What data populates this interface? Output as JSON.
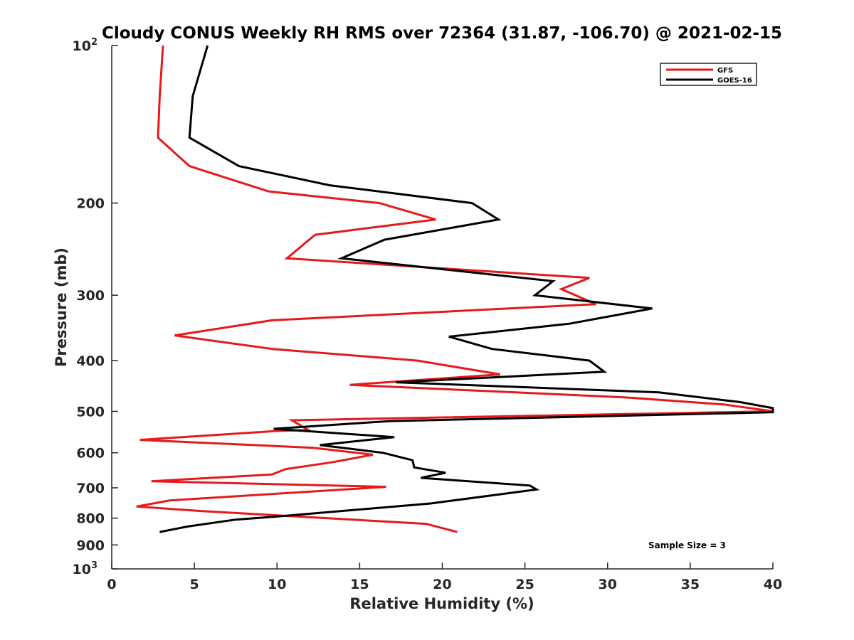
{
  "chart_data": {
    "type": "line",
    "title": "Cloudy CONUS Weekly RH RMS over 72364 (31.87, -106.70) @ 2021-02-15",
    "xlabel": "Relative Humidity (%)",
    "ylabel": "Pressure (mb)",
    "xlim": [
      0,
      40
    ],
    "ylim": [
      100,
      1000
    ],
    "y_scale": "log",
    "y_reversed": true,
    "grid": false,
    "legend_position": "top-right",
    "x_ticks": [
      "0",
      "5",
      "10",
      "15",
      "20",
      "25",
      "30",
      "35",
      "40"
    ],
    "y_ticks": [
      {
        "value": 100,
        "base": "10",
        "exp": "2",
        "text": ""
      },
      {
        "value": 200,
        "text": "200"
      },
      {
        "value": 300,
        "text": "300"
      },
      {
        "value": 400,
        "text": "400"
      },
      {
        "value": 500,
        "text": "500"
      },
      {
        "value": 600,
        "text": "600"
      },
      {
        "value": 700,
        "text": "700"
      },
      {
        "value": 800,
        "text": "800"
      },
      {
        "value": 900,
        "text": "900"
      },
      {
        "value": 1000,
        "base": "10",
        "exp": "3",
        "text": ""
      }
    ],
    "annotation": "Sample Size = 3",
    "series": [
      {
        "name": "GFS",
        "color": "#e41a1c",
        "points": [
          [
            3.1,
            100
          ],
          [
            2.9,
            125
          ],
          [
            2.8,
            150
          ],
          [
            4.7,
            170
          ],
          [
            9.5,
            190
          ],
          [
            16.2,
            200
          ],
          [
            19.6,
            215
          ],
          [
            12.3,
            230
          ],
          [
            10.6,
            255
          ],
          [
            28.9,
            278
          ],
          [
            27.2,
            292
          ],
          [
            29.3,
            312
          ],
          [
            9.7,
            335
          ],
          [
            3.8,
            358
          ],
          [
            9.7,
            380
          ],
          [
            18.5,
            400
          ],
          [
            23.5,
            425
          ],
          [
            14.4,
            445
          ],
          [
            31.0,
            470
          ],
          [
            37.0,
            485
          ],
          [
            40.0,
            500
          ],
          [
            10.9,
            520
          ],
          [
            11.9,
            543
          ],
          [
            10.0,
            545
          ],
          [
            1.7,
            567
          ],
          [
            12.2,
            587
          ],
          [
            15.8,
            605
          ],
          [
            13.4,
            625
          ],
          [
            10.5,
            645
          ],
          [
            9.7,
            660
          ],
          [
            2.4,
            680
          ],
          [
            16.6,
            697
          ],
          [
            9.5,
            720
          ],
          [
            3.5,
            740
          ],
          [
            1.5,
            760
          ],
          [
            5.3,
            775
          ],
          [
            19.0,
            820
          ],
          [
            20.9,
            850
          ]
        ]
      },
      {
        "name": "GOES-16",
        "color": "#000000",
        "points": [
          [
            5.8,
            100
          ],
          [
            4.9,
            125
          ],
          [
            4.7,
            150
          ],
          [
            7.7,
            170
          ],
          [
            13.2,
            185
          ],
          [
            21.8,
            200
          ],
          [
            23.4,
            215
          ],
          [
            16.5,
            235
          ],
          [
            13.9,
            255
          ],
          [
            26.7,
            282
          ],
          [
            25.6,
            300
          ],
          [
            32.7,
            318
          ],
          [
            27.7,
            340
          ],
          [
            20.4,
            360
          ],
          [
            23.0,
            380
          ],
          [
            28.9,
            400
          ],
          [
            29.8,
            420
          ],
          [
            17.2,
            440
          ],
          [
            33.1,
            460
          ],
          [
            38.0,
            480
          ],
          [
            40.0,
            493
          ],
          [
            40.0,
            502
          ],
          [
            16.8,
            522
          ],
          [
            9.8,
            540
          ],
          [
            17.1,
            560
          ],
          [
            12.6,
            580
          ],
          [
            16.4,
            600
          ],
          [
            18.2,
            620
          ],
          [
            18.3,
            640
          ],
          [
            20.2,
            655
          ],
          [
            18.7,
            670
          ],
          [
            25.3,
            693
          ],
          [
            25.7,
            705
          ],
          [
            19.3,
            750
          ],
          [
            9.8,
            795
          ],
          [
            7.5,
            805
          ],
          [
            4.6,
            830
          ],
          [
            2.9,
            850
          ]
        ]
      }
    ]
  }
}
